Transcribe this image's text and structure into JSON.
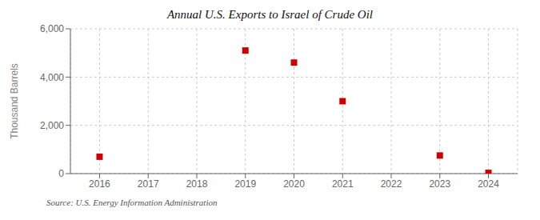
{
  "chart_data": {
    "type": "scatter",
    "title": "Annual U.S. Exports to Israel of Crude Oil",
    "y_label": "Thousand Barrels",
    "annotations": [
      "Source: U.S. Energy Information Administration"
    ],
    "x": [
      2016,
      2019,
      2020,
      2021,
      2023,
      2024
    ],
    "values": [
      700,
      5100,
      4600,
      3000,
      750,
      30
    ],
    "color": "#cc0000",
    "marker": "square",
    "xlim": [
      2015.4,
      2024.6
    ],
    "ylim": [
      0,
      6000
    ],
    "xticks": [
      2016,
      2017,
      2018,
      2019,
      2020,
      2021,
      2022,
      2023,
      2024
    ],
    "yticks": [
      0,
      {
        "value": 2000,
        "label": "2,000"
      },
      {
        "value": 4000,
        "label": "4,000"
      },
      {
        "value": 6000,
        "label": "6,000"
      }
    ],
    "grid": true
  }
}
